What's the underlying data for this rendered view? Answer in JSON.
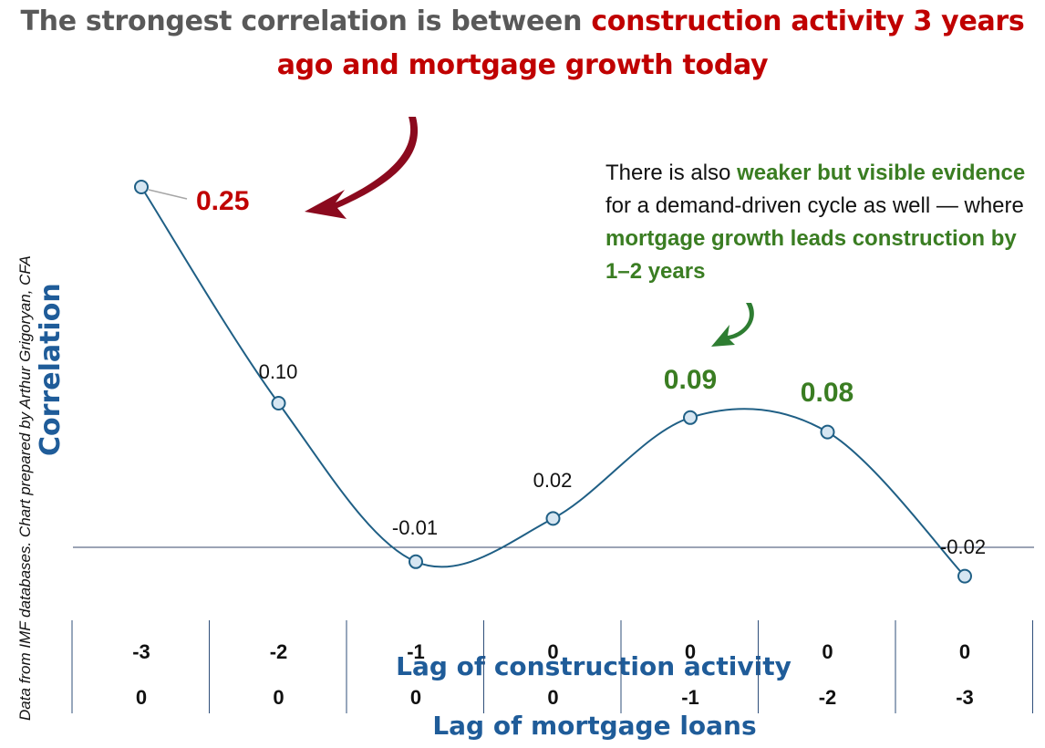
{
  "title": {
    "part1": "The strongest correlation is between ",
    "part2": "construction activity 3 years ago and mortgage growth today"
  },
  "annotation": {
    "t1": "There is also ",
    "g1": "weaker but visible evidence",
    "t2": " for a demand-driven cycle as well — where ",
    "g2": "mortgage growth leads construction by 1–2 years"
  },
  "credit": "Data from IMF databases. Chart prepared by Arthur Grigoryan, CFA",
  "colors": {
    "title_red": "#c00000",
    "title_gray": "#595959",
    "green": "#3a7d22",
    "line": "#1f5f85",
    "axis_label": "#1f5c99"
  },
  "chart_data": {
    "type": "line",
    "ylabel": "Correlation",
    "xlabel_top": "Lag of construction activity",
    "xlabel_bottom": "Lag of mortgage loans",
    "construction_lags": [
      "-3",
      "-2",
      "-1",
      "0",
      "0",
      "0",
      "0"
    ],
    "mortgage_lags": [
      "0",
      "0",
      "0",
      "0",
      "-1",
      "-2",
      "-3"
    ],
    "values": [
      0.25,
      0.1,
      -0.01,
      0.02,
      0.09,
      0.08,
      -0.02
    ],
    "value_labels": [
      "0.25",
      "0.10",
      "-0.01",
      "0.02",
      "0.09",
      "0.08",
      "-0.02"
    ],
    "highlight": [
      "red",
      "none",
      "none",
      "none",
      "green",
      "green",
      "none"
    ],
    "baseline": 0,
    "smooth": true,
    "grid": false,
    "legend": "none"
  }
}
